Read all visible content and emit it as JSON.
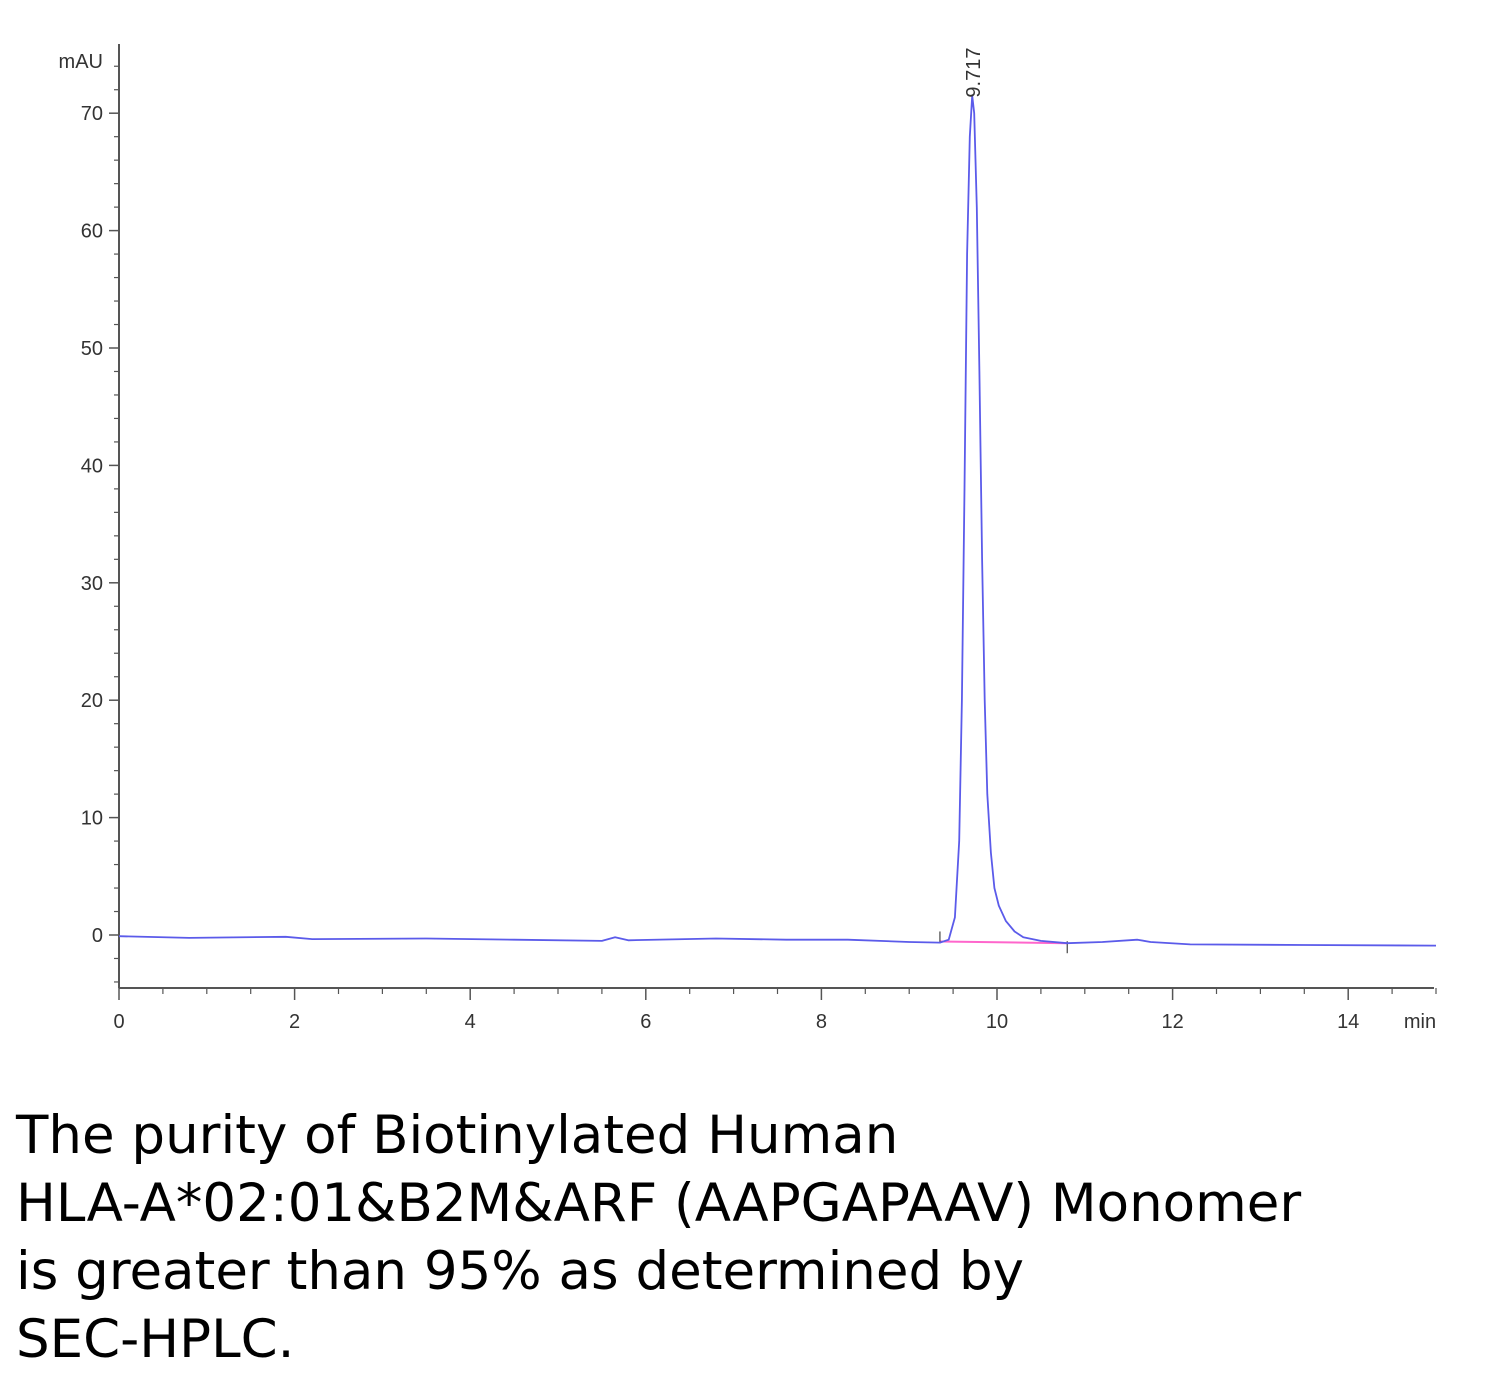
{
  "chart_data": {
    "type": "line",
    "title": "",
    "xlabel": "min",
    "ylabel": "mAU",
    "xlim": [
      0,
      15
    ],
    "ylim": [
      -4.5,
      76
    ],
    "x_ticks": [
      "0",
      "2",
      "4",
      "6",
      "8",
      "10",
      "12",
      "14"
    ],
    "y_ticks": [
      "0",
      "10",
      "20",
      "30",
      "40",
      "50",
      "60",
      "70"
    ],
    "series": [
      {
        "color": "#5b5bea",
        "points": [
          [
            0,
            -0.1
          ],
          [
            0.8,
            -0.25
          ],
          [
            1.9,
            -0.15
          ],
          [
            2.2,
            -0.35
          ],
          [
            3.5,
            -0.3
          ],
          [
            4.5,
            -0.4
          ],
          [
            5.5,
            -0.5
          ],
          [
            5.65,
            -0.2
          ],
          [
            5.8,
            -0.45
          ],
          [
            6.8,
            -0.3
          ],
          [
            7.6,
            -0.4
          ],
          [
            8.3,
            -0.4
          ],
          [
            9.0,
            -0.6
          ],
          [
            9.35,
            -0.65
          ],
          [
            9.45,
            -0.4
          ],
          [
            9.52,
            1.5
          ],
          [
            9.57,
            8
          ],
          [
            9.6,
            20
          ],
          [
            9.63,
            38
          ],
          [
            9.66,
            58
          ],
          [
            9.69,
            68
          ],
          [
            9.717,
            71.5
          ],
          [
            9.74,
            70
          ],
          [
            9.77,
            62
          ],
          [
            9.8,
            48
          ],
          [
            9.83,
            32
          ],
          [
            9.86,
            20
          ],
          [
            9.89,
            12
          ],
          [
            9.93,
            7
          ],
          [
            9.97,
            4
          ],
          [
            10.02,
            2.5
          ],
          [
            10.1,
            1.2
          ],
          [
            10.2,
            0.3
          ],
          [
            10.3,
            -0.2
          ],
          [
            10.5,
            -0.5
          ],
          [
            10.8,
            -0.7
          ],
          [
            11.2,
            -0.6
          ],
          [
            11.6,
            -0.4
          ],
          [
            11.75,
            -0.6
          ],
          [
            12.2,
            -0.8
          ],
          [
            13.5,
            -0.85
          ],
          [
            15,
            -0.9
          ]
        ]
      }
    ],
    "baseline": {
      "color": "#ff66cc",
      "points": [
        [
          9.35,
          -0.55
        ],
        [
          10.8,
          -0.7
        ]
      ]
    },
    "annotations": [
      {
        "text": "9.717",
        "x": 9.717,
        "y": 71.5
      }
    ],
    "grid": false,
    "legend": "none"
  },
  "caption": {
    "lines": [
      "The purity of Biotinylated Human",
      "HLA-A*02:01&B2M&ARF (AAPGAPAAV) Monomer",
      "is greater than 95% as determined by",
      "SEC-HPLC."
    ]
  }
}
